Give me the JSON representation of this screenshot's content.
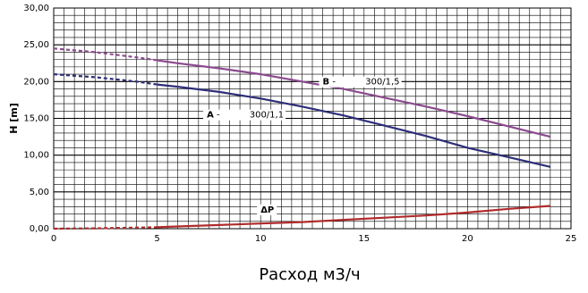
{
  "chart_data": {
    "type": "line",
    "title": "",
    "xlabel": "Расход м3/ч",
    "ylabel": "H [m]",
    "xlim": [
      0,
      25
    ],
    "ylim": [
      0,
      30
    ],
    "x_ticks": [
      0,
      5,
      10,
      15,
      20,
      25
    ],
    "x_tick_labels": [
      "0",
      "5",
      "10",
      "15",
      "20",
      "25"
    ],
    "y_ticks": [
      0,
      5,
      10,
      15,
      20,
      25,
      30
    ],
    "y_tick_labels": [
      "0,00",
      "5,00",
      "10,00",
      "15,00",
      "20,00",
      "25,00",
      "30,00"
    ],
    "grid": "on",
    "series": [
      {
        "name": "B - 300/1,5",
        "color": "#8B4A8E",
        "dashed_until_x": 5,
        "x": [
          0,
          2,
          4,
          5,
          6,
          8,
          10,
          12,
          14,
          16,
          18,
          20,
          22,
          24
        ],
        "values": [
          24.5,
          24.0,
          23.3,
          22.9,
          22.5,
          21.8,
          21.0,
          20.0,
          19.0,
          17.8,
          16.6,
          15.3,
          13.9,
          12.5
        ]
      },
      {
        "name": "A - 300/1,1",
        "color": "#2E2E78",
        "dashed_until_x": 5,
        "x": [
          0,
          2,
          4,
          5,
          6,
          8,
          10,
          12,
          14,
          16,
          18,
          20,
          22,
          24
        ],
        "values": [
          21.0,
          20.6,
          20.0,
          19.6,
          19.3,
          18.6,
          17.7,
          16.6,
          15.4,
          14.0,
          12.6,
          11.0,
          9.7,
          8.4
        ]
      },
      {
        "name": "ΔP",
        "color": "#B02A2A",
        "dashed_until_x": 5,
        "x": [
          0,
          2,
          4,
          5,
          6,
          8,
          10,
          12,
          14,
          16,
          18,
          20,
          22,
          24
        ],
        "values": [
          0.0,
          0.05,
          0.15,
          0.2,
          0.3,
          0.5,
          0.7,
          0.9,
          1.2,
          1.5,
          1.8,
          2.2,
          2.7,
          3.1
        ]
      }
    ],
    "annotations": [
      {
        "bold": "B",
        "rest": " -",
        "tail": "300/1,5",
        "series": "B - 300/1,5",
        "at_x": 13.0,
        "at_y": 19.6
      },
      {
        "bold": "A",
        "rest": " -",
        "tail": "300/1,1",
        "series": "A - 300/1,1",
        "at_x": 7.4,
        "at_y": 15.1
      },
      {
        "bold": "ΔP",
        "rest": "",
        "tail": "",
        "series": "ΔP",
        "at_x": 10.0,
        "at_y": 2.2
      }
    ]
  }
}
